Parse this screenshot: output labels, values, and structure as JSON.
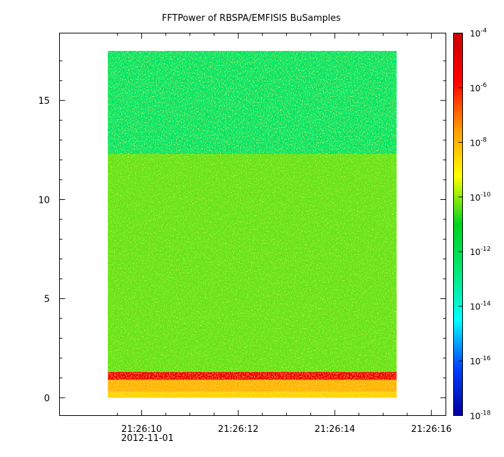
{
  "chart_data": {
    "type": "heatmap",
    "title": "FFTPower of RBSPA/EMFISIS  BuSamples",
    "xlabel": "",
    "ylabel": "",
    "x_ticks": [
      {
        "value": 10,
        "label": "21:26:10"
      },
      {
        "value": 12,
        "label": "21:26:12"
      },
      {
        "value": 14,
        "label": "21:26:14"
      },
      {
        "value": 16,
        "label": "21:26:16"
      }
    ],
    "x_date_label": "2012-11-01",
    "x_minor_ticks": [
      9.5,
      10.5,
      11,
      11.5,
      12.5,
      13,
      13.5,
      14.5,
      15,
      15.5
    ],
    "xlim": [
      8.3,
      16.3
    ],
    "x_data_range": [
      9.3,
      15.28
    ],
    "y_ticks": [
      0,
      5,
      10,
      15
    ],
    "ylim": [
      -0.9,
      18.4
    ],
    "y_data_range": [
      0,
      17.5
    ],
    "colorbar": {
      "scale": "log",
      "range": [
        1e-18,
        0.0001
      ],
      "ticks": [
        {
          "exp": -4,
          "base": "10",
          "sup": "-4"
        },
        {
          "exp": -6,
          "base": "10",
          "sup": "-6"
        },
        {
          "exp": -8,
          "base": "10",
          "sup": "-8"
        },
        {
          "exp": -10,
          "base": "10",
          "sup": "-10"
        },
        {
          "exp": -12,
          "base": "10",
          "sup": "-12"
        },
        {
          "exp": -14,
          "base": "10",
          "sup": "-14"
        },
        {
          "exp": -16,
          "base": "10",
          "sup": "-16"
        },
        {
          "exp": -18,
          "base": "10",
          "sup": "-18"
        }
      ],
      "colors": [
        "#00009f",
        "#0040ff",
        "#00ffff",
        "#00e878",
        "#00d21e",
        "#ffff00",
        "#ff9900",
        "#ff0000",
        "#c80000"
      ]
    },
    "bands": [
      {
        "y_range": [
          12.3,
          17.5
        ],
        "log_power": -12.4
      },
      {
        "y_range": [
          1.3,
          12.3
        ],
        "log_power": -10.3
      },
      {
        "y_range": [
          0.9,
          1.3
        ],
        "log_power": -5.2
      },
      {
        "y_range": [
          0.3,
          0.9
        ],
        "log_power": -8.0
      },
      {
        "y_range": [
          0,
          0.3
        ],
        "log_power": -8.5
      }
    ]
  }
}
